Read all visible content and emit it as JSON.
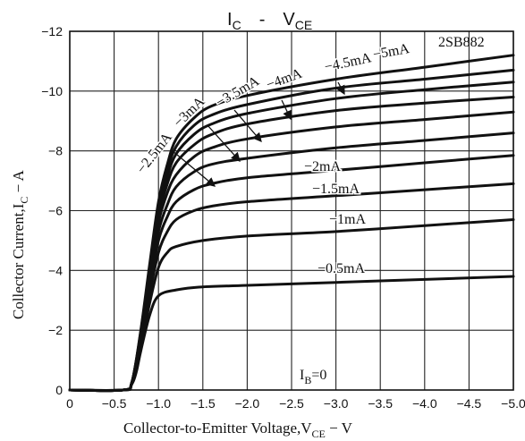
{
  "chart_data": {
    "type": "line",
    "title": "I_C - V_CE",
    "title_parts": {
      "main": "I",
      "main_sub": "C",
      "dash": "-",
      "second": "V",
      "second_sub": "CE"
    },
    "part_number": "2SB882",
    "xlabel": "Collector-to-Emitter Voltage,V_CE - V",
    "xlabel_parts": {
      "main": "Collector-to-Emitter Voltage,V",
      "sub": "CE",
      "unit": " − V"
    },
    "ylabel": "Collector Current,I_C - A",
    "ylabel_parts": {
      "main": "Collector Current,I",
      "sub": "C",
      "unit": " − A"
    },
    "xlim": [
      0,
      -5.0
    ],
    "ylim": [
      0,
      -12
    ],
    "x_ticks": [
      "0",
      "−0.5",
      "−1.0",
      "−1.5",
      "−2.0",
      "−2.5",
      "−3.0",
      "−3.5",
      "−4.0",
      "−4.5",
      "−5.0"
    ],
    "y_ticks": [
      "0",
      "−2",
      "−4",
      "−6",
      "−8",
      "−10",
      "−12"
    ],
    "grid": true,
    "series": [
      {
        "name": "−0.5mA",
        "x": [
          0,
          -0.6,
          -0.7,
          -0.75,
          -0.8,
          -0.9,
          -1.0,
          -1.2,
          -1.5,
          -2.0,
          -3.0,
          -4.0,
          -5.0
        ],
        "y": [
          0,
          0,
          -0.2,
          -0.6,
          -1.3,
          -2.5,
          -3.15,
          -3.35,
          -3.45,
          -3.5,
          -3.6,
          -3.7,
          -3.8
        ]
      },
      {
        "name": "−1mA",
        "x": [
          0,
          -0.6,
          -0.7,
          -0.8,
          -0.9,
          -1.0,
          -1.1,
          -1.2,
          -1.5,
          -2.0,
          -3.0,
          -4.0,
          -5.0
        ],
        "y": [
          0,
          0,
          -0.2,
          -1.4,
          -2.9,
          -4.1,
          -4.6,
          -4.8,
          -5.0,
          -5.15,
          -5.3,
          -5.5,
          -5.7
        ]
      },
      {
        "name": "−1.5mA",
        "x": [
          0,
          -0.6,
          -0.7,
          -0.8,
          -0.9,
          -1.0,
          -1.1,
          -1.2,
          -1.4,
          -1.6,
          -2.0,
          -3.0,
          -4.0,
          -5.0
        ],
        "y": [
          0,
          0,
          -0.25,
          -1.5,
          -3.2,
          -4.6,
          -5.3,
          -5.7,
          -6.0,
          -6.15,
          -6.3,
          -6.5,
          -6.7,
          -6.9
        ]
      },
      {
        "name": "−2mA",
        "x": [
          0,
          -0.6,
          -0.7,
          -0.8,
          -0.9,
          -1.0,
          -1.1,
          -1.2,
          -1.4,
          -1.6,
          -2.0,
          -3.0,
          -4.0,
          -5.0
        ],
        "y": [
          0,
          0,
          -0.25,
          -1.6,
          -3.4,
          -5.0,
          -5.8,
          -6.3,
          -6.7,
          -6.9,
          -7.1,
          -7.35,
          -7.6,
          -7.85
        ]
      },
      {
        "name": "−2.5mA",
        "x": [
          0,
          -0.6,
          -0.7,
          -0.8,
          -0.9,
          -1.0,
          -1.1,
          -1.2,
          -1.4,
          -1.6,
          -2.0,
          -3.0,
          -4.0,
          -5.0
        ],
        "y": [
          0,
          0,
          -0.25,
          -1.7,
          -3.6,
          -5.3,
          -6.2,
          -6.8,
          -7.3,
          -7.55,
          -7.75,
          -8.1,
          -8.35,
          -8.6
        ]
      },
      {
        "name": "−3mA",
        "x": [
          0,
          -0.6,
          -0.7,
          -0.8,
          -0.9,
          -1.0,
          -1.1,
          -1.2,
          -1.4,
          -1.6,
          -2.0,
          -3.0,
          -4.0,
          -5.0
        ],
        "y": [
          0,
          0,
          -0.25,
          -1.8,
          -3.8,
          -5.6,
          -6.6,
          -7.2,
          -7.8,
          -8.1,
          -8.4,
          -8.8,
          -9.05,
          -9.3
        ]
      },
      {
        "name": "−3.5mA",
        "x": [
          0,
          -0.6,
          -0.7,
          -0.8,
          -0.9,
          -1.0,
          -1.1,
          -1.2,
          -1.4,
          -1.6,
          -2.0,
          -3.0,
          -4.0,
          -5.0
        ],
        "y": [
          0,
          0,
          -0.25,
          -1.85,
          -3.9,
          -5.8,
          -6.9,
          -7.6,
          -8.2,
          -8.55,
          -8.9,
          -9.35,
          -9.6,
          -9.8
        ]
      },
      {
        "name": "−4mA",
        "x": [
          0,
          -0.6,
          -0.7,
          -0.8,
          -0.9,
          -1.0,
          -1.1,
          -1.2,
          -1.4,
          -1.6,
          -2.0,
          -3.0,
          -4.0,
          -5.0
        ],
        "y": [
          0,
          0,
          -0.25,
          -1.9,
          -4.0,
          -6.0,
          -7.15,
          -7.9,
          -8.55,
          -8.9,
          -9.25,
          -9.75,
          -10.05,
          -10.3
        ]
      },
      {
        "name": "−4.5mA",
        "x": [
          0,
          -0.6,
          -0.7,
          -0.8,
          -0.9,
          -1.0,
          -1.1,
          -1.2,
          -1.4,
          -1.6,
          -2.0,
          -3.0,
          -4.0,
          -5.0
        ],
        "y": [
          0,
          0,
          -0.25,
          -1.95,
          -4.1,
          -6.15,
          -7.35,
          -8.15,
          -8.85,
          -9.2,
          -9.55,
          -10.1,
          -10.4,
          -10.7
        ]
      },
      {
        "name": "−5mA",
        "x": [
          0,
          -0.6,
          -0.7,
          -0.8,
          -0.9,
          -1.0,
          -1.1,
          -1.2,
          -1.4,
          -1.6,
          -2.0,
          -3.0,
          -4.0,
          -5.0
        ],
        "y": [
          0,
          0,
          -0.25,
          -2.0,
          -4.2,
          -6.3,
          -7.55,
          -8.4,
          -9.1,
          -9.5,
          -9.85,
          -10.4,
          -10.8,
          -11.2
        ]
      }
    ],
    "annotations": [
      "I_B=0",
      "2SB882"
    ],
    "ib_zero_label": {
      "main": "I",
      "sub": "B",
      "rest": "=0"
    }
  }
}
